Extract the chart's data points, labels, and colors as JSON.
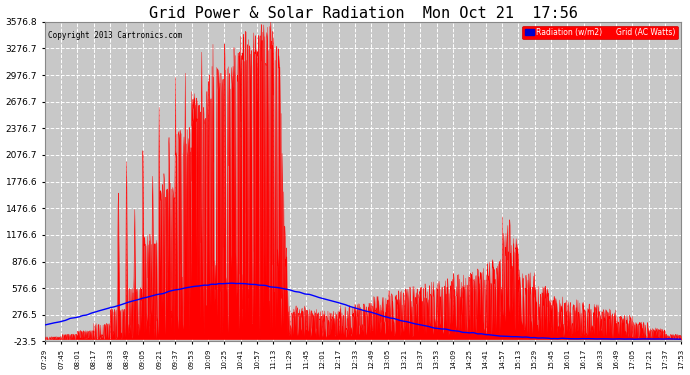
{
  "title": "Grid Power & Solar Radiation  Mon Oct 21  17:56",
  "copyright": "Copyright 2013 Cartronics.com",
  "legend_labels": [
    "Radiation (w/m2)",
    "Grid (AC Watts)"
  ],
  "legend_colors": [
    "#0000ff",
    "#ff0000"
  ],
  "yticks": [
    -23.5,
    276.5,
    576.6,
    876.6,
    1176.6,
    1476.6,
    1776.6,
    2076.7,
    2376.7,
    2676.7,
    2976.7,
    3276.7,
    3576.8
  ],
  "ylim": [
    -23.5,
    3576.8
  ],
  "background_color": "#ffffff",
  "plot_bg_color": "#c8c8c8",
  "grid_color": "#ffffff",
  "title_fontsize": 11,
  "xtick_labels": [
    "07:29",
    "07:45",
    "08:01",
    "08:17",
    "08:33",
    "08:49",
    "09:05",
    "09:21",
    "09:37",
    "09:53",
    "10:09",
    "10:25",
    "10:41",
    "10:57",
    "11:13",
    "11:29",
    "11:45",
    "12:01",
    "12:17",
    "12:33",
    "12:49",
    "13:05",
    "13:21",
    "13:37",
    "13:53",
    "14:09",
    "14:25",
    "14:41",
    "14:57",
    "15:13",
    "15:29",
    "15:45",
    "16:01",
    "16:17",
    "16:33",
    "16:49",
    "17:05",
    "17:21",
    "17:37",
    "17:53"
  ]
}
